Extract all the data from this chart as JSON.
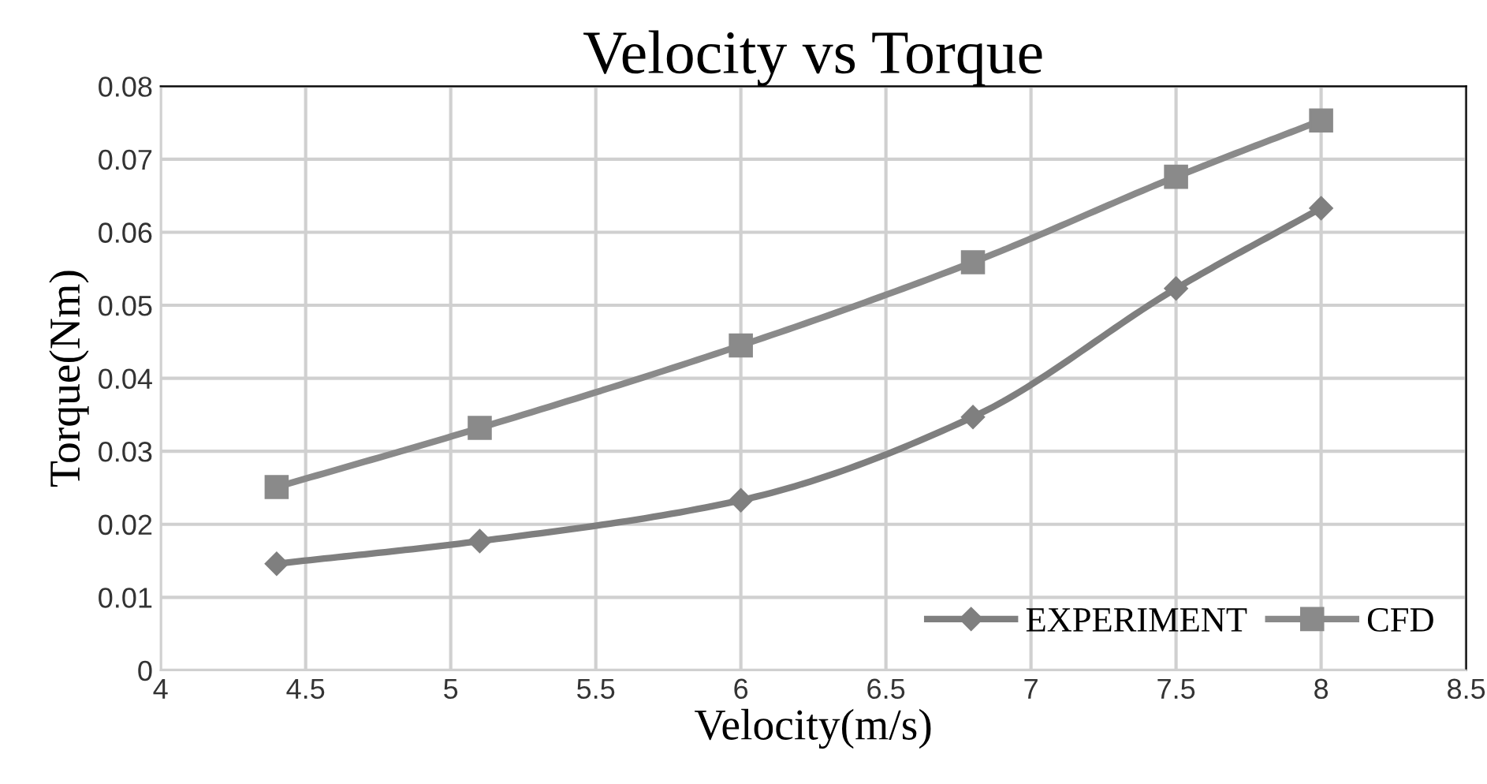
{
  "chart_data": {
    "type": "line",
    "title": "Velocity vs Torque",
    "xlabel": "Velocity(m/s)",
    "ylabel": "Torque(Nm)",
    "x": [
      4.4,
      5.1,
      6,
      6.8,
      7.5,
      8
    ],
    "series": [
      {
        "name": "EXPERIMENT",
        "color": "#7f7f7f",
        "marker": "diamond",
        "values": [
          0.0146,
          0.0177,
          0.0233,
          0.0347,
          0.0523,
          0.0633
        ]
      },
      {
        "name": "CFD",
        "color": "#8a8a8a",
        "marker": "square",
        "values": [
          0.0251,
          0.0332,
          0.0445,
          0.0559,
          0.0676,
          0.0753
        ]
      }
    ],
    "xlim": [
      4,
      8.5
    ],
    "xticks": [
      4,
      4.5,
      5,
      5.5,
      6,
      6.5,
      7,
      7.5,
      8,
      8.5
    ],
    "ylim": [
      0,
      0.08
    ],
    "yticks": [
      0,
      0.01,
      0.02,
      0.03,
      0.04,
      0.05,
      0.06,
      0.07,
      0.08
    ],
    "grid": true,
    "legend": "bottom right",
    "line_style": "solid"
  }
}
